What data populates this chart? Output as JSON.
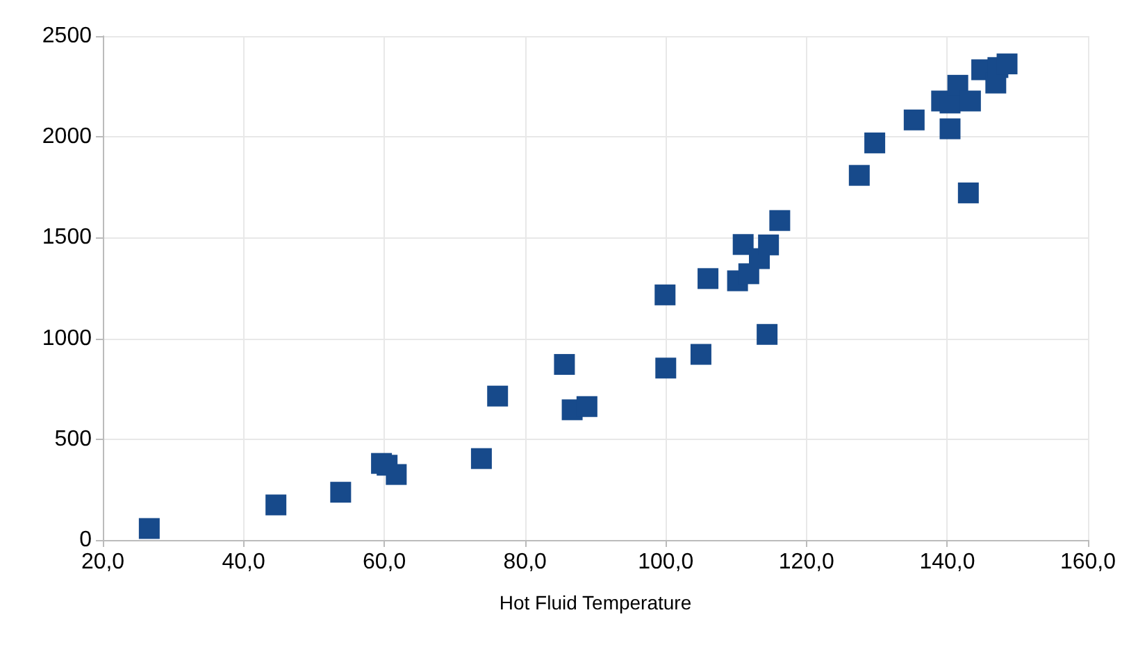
{
  "chart_data": {
    "type": "scatter",
    "xlabel": "Hot Fluid Temperature",
    "x": [
      26.6,
      44.6,
      53.8,
      59.6,
      60.4,
      61.7,
      73.8,
      76.1,
      85.6,
      86.7,
      88.8,
      99.9,
      100.0,
      105.0,
      106.0,
      110.2,
      111.0,
      111.8,
      113.3,
      114.6,
      114.4,
      116.2,
      127.5,
      129.7,
      135.3,
      139.2,
      140.4,
      140.4,
      141.5,
      143.3,
      143.0,
      144.9,
      146.9,
      147.2,
      148.5
    ],
    "series": [
      {
        "color": "#174a8b",
        "values": [
          57,
          174,
          237,
          380,
          371,
          325,
          404,
          714,
          871,
          646,
          662,
          1216,
          853,
          921,
          1297,
          1286,
          1466,
          1321,
          1396,
          1464,
          1020,
          1585,
          1809,
          1970,
          2084,
          2178,
          2168,
          2040,
          2256,
          2178,
          1722,
          2333,
          2267,
          2344,
          2362
        ]
      }
    ],
    "xlim": [
      20,
      160
    ],
    "xticks": [
      {
        "value": 20,
        "label": "20,0"
      },
      {
        "value": 40,
        "label": "40,0"
      },
      {
        "value": 60,
        "label": "60,0"
      },
      {
        "value": 80,
        "label": "80,0"
      },
      {
        "value": 100,
        "label": "100,0"
      },
      {
        "value": 120,
        "label": "120,0"
      },
      {
        "value": 140,
        "label": "140,0"
      },
      {
        "value": 160,
        "label": "160,0"
      }
    ],
    "ylim": [
      0,
      2500
    ],
    "yticks": [
      0,
      500,
      1000,
      1500,
      2000,
      2500
    ],
    "grid": true,
    "marker": "square"
  }
}
